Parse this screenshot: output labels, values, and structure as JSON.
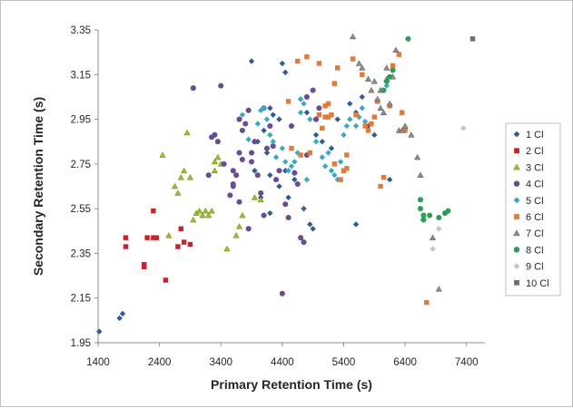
{
  "chart_data": {
    "type": "scatter",
    "title": "",
    "xlabel": "Primary Retention Time (s)",
    "ylabel": "Secondary Retention Time (s)",
    "xlim": [
      1400,
      7700
    ],
    "ylim": [
      1.95,
      3.35
    ],
    "xticks": [
      "1400",
      "2400",
      "3400",
      "4400",
      "5400",
      "6400",
      "7400"
    ],
    "yticks": [
      "1.95",
      "2.15",
      "2.35",
      "2.55",
      "2.75",
      "2.95",
      "3.15",
      "3.35"
    ],
    "grid": false,
    "legend_position": "right",
    "series": [
      {
        "name": "1 Cl",
        "marker": "diamond",
        "color": "#2e5d96",
        "points": [
          [
            1420,
            2.0
          ],
          [
            1750,
            2.06
          ],
          [
            1800,
            2.08
          ],
          [
            3900,
            3.21
          ],
          [
            4400,
            3.2
          ],
          [
            4450,
            3.16
          ],
          [
            4700,
            3.04
          ],
          [
            4200,
            3.0
          ],
          [
            4250,
            2.97
          ],
          [
            4350,
            2.95
          ],
          [
            4100,
            2.9
          ],
          [
            4000,
            2.85
          ],
          [
            3950,
            2.72
          ],
          [
            4150,
            2.8
          ],
          [
            4200,
            2.7
          ],
          [
            4350,
            2.65
          ],
          [
            4500,
            2.6
          ],
          [
            4050,
            2.6
          ],
          [
            4200,
            2.53
          ],
          [
            4450,
            2.72
          ],
          [
            4600,
            2.68
          ],
          [
            4750,
            2.55
          ],
          [
            4850,
            2.48
          ],
          [
            4900,
            2.46
          ],
          [
            5050,
            2.85
          ],
          [
            5200,
            2.82
          ],
          [
            5300,
            2.95
          ],
          [
            5500,
            3.02
          ],
          [
            5600,
            2.98
          ],
          [
            5700,
            3.05
          ],
          [
            5800,
            2.92
          ],
          [
            5900,
            2.88
          ],
          [
            5600,
            2.48
          ],
          [
            6150,
            2.68
          ],
          [
            4800,
            2.98
          ],
          [
            4950,
            2.88
          ]
        ]
      },
      {
        "name": "2 Cl",
        "marker": "square",
        "color": "#c0272d",
        "points": [
          [
            1850,
            2.42
          ],
          [
            1850,
            2.38
          ],
          [
            2150,
            2.29
          ],
          [
            2150,
            2.3
          ],
          [
            2200,
            2.42
          ],
          [
            2300,
            2.54
          ],
          [
            2300,
            2.42
          ],
          [
            2350,
            2.42
          ],
          [
            2500,
            2.23
          ],
          [
            2700,
            2.38
          ],
          [
            2750,
            2.46
          ],
          [
            2800,
            2.4
          ],
          [
            2900,
            2.39
          ]
        ]
      },
      {
        "name": "3 Cl",
        "marker": "triangle",
        "color": "#9bbb3b",
        "points": [
          [
            2450,
            2.79
          ],
          [
            2550,
            2.43
          ],
          [
            2650,
            2.65
          ],
          [
            2700,
            2.62
          ],
          [
            2750,
            2.69
          ],
          [
            2800,
            2.72
          ],
          [
            2850,
            2.89
          ],
          [
            2900,
            2.69
          ],
          [
            2950,
            2.5
          ],
          [
            3000,
            2.53
          ],
          [
            3050,
            2.54
          ],
          [
            3100,
            2.52
          ],
          [
            3150,
            2.54
          ],
          [
            3200,
            2.52
          ],
          [
            3250,
            2.54
          ],
          [
            3300,
            2.76
          ],
          [
            3300,
            2.72
          ],
          [
            3350,
            2.78
          ],
          [
            3500,
            2.37
          ],
          [
            3650,
            2.43
          ],
          [
            3700,
            2.47
          ],
          [
            3750,
            2.52
          ],
          [
            3400,
            2.75
          ],
          [
            3950,
            2.6
          ],
          [
            4050,
            2.59
          ]
        ]
      },
      {
        "name": "4 Cl",
        "marker": "circle",
        "color": "#6a4c93",
        "points": [
          [
            2950,
            3.09
          ],
          [
            3250,
            2.87
          ],
          [
            3300,
            2.88
          ],
          [
            3400,
            3.1
          ],
          [
            3450,
            2.75
          ],
          [
            3550,
            2.61
          ],
          [
            3600,
            2.65
          ],
          [
            3600,
            2.66
          ],
          [
            3650,
            2.7
          ],
          [
            3700,
            2.58
          ],
          [
            3700,
            2.8
          ],
          [
            3750,
            2.9
          ],
          [
            3750,
            2.77
          ],
          [
            3800,
            2.93
          ],
          [
            3850,
            2.99
          ],
          [
            3850,
            2.46
          ],
          [
            3900,
            2.76
          ],
          [
            3900,
            2.8
          ],
          [
            3950,
            2.85
          ],
          [
            4000,
            2.7
          ],
          [
            4050,
            2.62
          ],
          [
            4100,
            3.0
          ],
          [
            4150,
            2.82
          ],
          [
            4200,
            2.92
          ],
          [
            4250,
            2.83
          ],
          [
            4300,
            2.68
          ],
          [
            4350,
            2.72
          ],
          [
            4400,
            2.17
          ],
          [
            4450,
            2.57
          ],
          [
            4500,
            2.51
          ],
          [
            4550,
            2.92
          ],
          [
            4600,
            2.71
          ],
          [
            4650,
            2.66
          ],
          [
            4700,
            2.42
          ],
          [
            4750,
            2.4
          ],
          [
            4800,
            2.79
          ],
          [
            4800,
            3.05
          ],
          [
            4900,
            3.08
          ],
          [
            4950,
            2.95
          ],
          [
            5000,
            3.0
          ],
          [
            3600,
            2.72
          ],
          [
            3350,
            2.85
          ],
          [
            3200,
            2.7
          ],
          [
            3700,
            2.95
          ],
          [
            4100,
            2.52
          ]
        ]
      },
      {
        "name": "5 Cl",
        "marker": "diamond",
        "color": "#3aa8c1",
        "points": [
          [
            3750,
            2.97
          ],
          [
            4000,
            2.93
          ],
          [
            4050,
            2.99
          ],
          [
            4100,
            3.0
          ],
          [
            4150,
            2.95
          ],
          [
            4200,
            2.88
          ],
          [
            4250,
            2.85
          ],
          [
            4300,
            2.78
          ],
          [
            4400,
            2.82
          ],
          [
            4450,
            2.76
          ],
          [
            4500,
            2.72
          ],
          [
            4550,
            2.74
          ],
          [
            4600,
            2.76
          ],
          [
            4650,
            2.8
          ],
          [
            4700,
            2.98
          ],
          [
            4700,
            3.04
          ],
          [
            4750,
            3.02
          ],
          [
            4800,
            2.68
          ],
          [
            4850,
            2.95
          ],
          [
            4950,
            2.85
          ],
          [
            5050,
            2.78
          ],
          [
            5100,
            2.74
          ],
          [
            5150,
            2.8
          ],
          [
            5200,
            2.72
          ],
          [
            5250,
            2.7
          ],
          [
            5300,
            2.68
          ],
          [
            5350,
            2.76
          ],
          [
            5400,
            2.88
          ],
          [
            5450,
            2.92
          ],
          [
            5500,
            2.95
          ],
          [
            5600,
            2.92
          ],
          [
            5650,
            2.96
          ],
          [
            5700,
            3.0
          ],
          [
            5750,
            2.94
          ],
          [
            6100,
            3.1
          ],
          [
            3850,
            2.86
          ]
        ]
      },
      {
        "name": "6 Cl",
        "marker": "square",
        "color": "#e07b39",
        "points": [
          [
            4500,
            3.03
          ],
          [
            4550,
            2.82
          ],
          [
            4650,
            3.21
          ],
          [
            4700,
            2.79
          ],
          [
            4800,
            3.23
          ],
          [
            4850,
            2.8
          ],
          [
            5000,
            3.2
          ],
          [
            5050,
            2.91
          ],
          [
            5100,
            2.96
          ],
          [
            5150,
            3.02
          ],
          [
            5150,
            2.96
          ],
          [
            5200,
            2.97
          ],
          [
            5250,
            2.75
          ],
          [
            5250,
            3.11
          ],
          [
            5300,
            3.18
          ],
          [
            5350,
            2.68
          ],
          [
            5400,
            2.72
          ],
          [
            5450,
            2.79
          ],
          [
            5450,
            2.73
          ],
          [
            5550,
            3.22
          ],
          [
            5600,
            2.97
          ],
          [
            5700,
            3.15
          ],
          [
            5750,
            2.92
          ],
          [
            5800,
            2.9
          ],
          [
            5850,
            2.93
          ],
          [
            5900,
            2.96
          ],
          [
            5950,
            3.03
          ],
          [
            6000,
            2.65
          ],
          [
            6050,
            2.69
          ],
          [
            6150,
            3.01
          ],
          [
            6200,
            3.19
          ],
          [
            6300,
            3.24
          ],
          [
            6350,
            2.98
          ],
          [
            6400,
            2.9
          ],
          [
            6750,
            2.13
          ],
          [
            5000,
            2.97
          ],
          [
            5100,
            3.01
          ]
        ]
      },
      {
        "name": "7 Cl",
        "marker": "triangle",
        "color": "#8c8c8c",
        "points": [
          [
            5550,
            3.32
          ],
          [
            5650,
            3.2
          ],
          [
            5700,
            3.18
          ],
          [
            5800,
            3.13
          ],
          [
            5850,
            3.08
          ],
          [
            5900,
            3.12
          ],
          [
            5950,
            3.04
          ],
          [
            6000,
            3.0
          ],
          [
            6050,
            2.98
          ],
          [
            6100,
            3.18
          ],
          [
            6150,
            3.02
          ],
          [
            6200,
            3.14
          ],
          [
            6250,
            3.26
          ],
          [
            6300,
            2.9
          ],
          [
            6350,
            2.9
          ],
          [
            6400,
            2.92
          ],
          [
            6500,
            2.88
          ],
          [
            6600,
            2.78
          ],
          [
            6650,
            2.7
          ],
          [
            6700,
            2.51
          ],
          [
            6850,
            2.42
          ],
          [
            6950,
            2.19
          ],
          [
            6000,
            3.08
          ],
          [
            6100,
            3.13
          ]
        ]
      },
      {
        "name": "8 Cl",
        "marker": "circle",
        "color": "#2a9d5a",
        "points": [
          [
            6050,
            3.08
          ],
          [
            6100,
            3.12
          ],
          [
            6150,
            3.14
          ],
          [
            6200,
            3.17
          ],
          [
            6450,
            3.31
          ],
          [
            6650,
            2.59
          ],
          [
            6650,
            2.55
          ],
          [
            6700,
            2.52
          ],
          [
            6700,
            2.5
          ],
          [
            6800,
            2.52
          ],
          [
            6950,
            2.51
          ],
          [
            7050,
            2.53
          ],
          [
            7100,
            2.54
          ]
        ]
      },
      {
        "name": "9 Cl",
        "marker": "diamond",
        "color": "#c4c4c4",
        "points": [
          [
            6850,
            2.37
          ],
          [
            6950,
            2.46
          ],
          [
            7350,
            2.91
          ]
        ]
      },
      {
        "name": "10 Cl",
        "marker": "square",
        "color": "#6e6e6e",
        "points": [
          [
            7500,
            3.31
          ]
        ]
      }
    ]
  }
}
